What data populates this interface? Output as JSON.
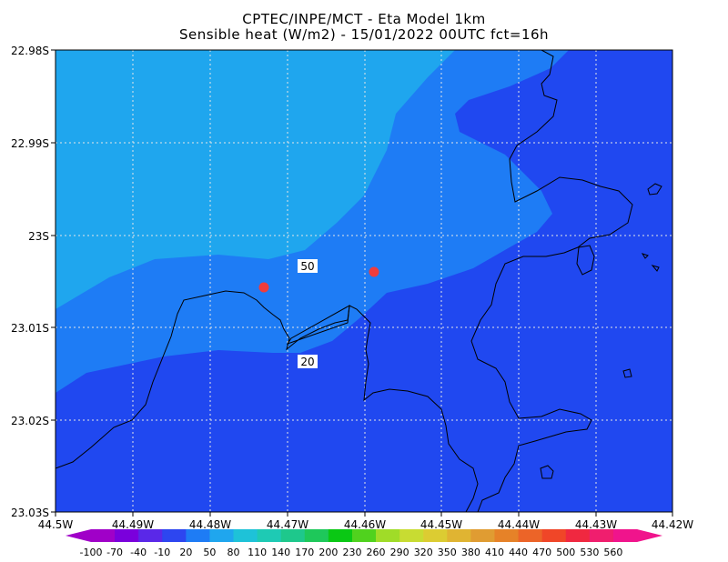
{
  "title": {
    "line1": "CPTEC/INPE/MCT -  Eta Model 1km",
    "line2": "Sensible heat (W/m2) - 15/01/2022 00UTC fct=16h"
  },
  "map": {
    "lat_labels": [
      "22.98S",
      "22.99S",
      "23S",
      "23.01S",
      "23.02S",
      "23.03S"
    ],
    "lon_labels": [
      "44.5W",
      "44.49W",
      "44.48W",
      "44.47W",
      "44.46W",
      "44.45W",
      "44.44W",
      "44.43W",
      "44.42W"
    ],
    "contour_labels": [
      "50",
      "20"
    ],
    "region_colors": {
      "light": "#1fa6ee",
      "mid": "#1e7cf5",
      "dark": "#2048f0"
    },
    "marker_color": "#f03c3c"
  },
  "colorbar": {
    "labels": [
      "-100",
      "-70",
      "-40",
      "-10",
      "20",
      "50",
      "80",
      "110",
      "140",
      "170",
      "200",
      "230",
      "260",
      "290",
      "320",
      "350",
      "380",
      "410",
      "440",
      "470",
      "500",
      "530",
      "560"
    ],
    "colors": [
      "#a000c8",
      "#7a00dc",
      "#5a28e8",
      "#2d46f0",
      "#1e7cf5",
      "#1fa6ee",
      "#1ec2d8",
      "#1ecab4",
      "#1ec88c",
      "#1ec85a",
      "#0ac814",
      "#50d21e",
      "#a0dc28",
      "#c8dc32",
      "#dccc32",
      "#e0b432",
      "#e09c32",
      "#e68228",
      "#ec6428",
      "#f04628",
      "#f02840",
      "#f01e6e",
      "#f0148c"
    ]
  }
}
